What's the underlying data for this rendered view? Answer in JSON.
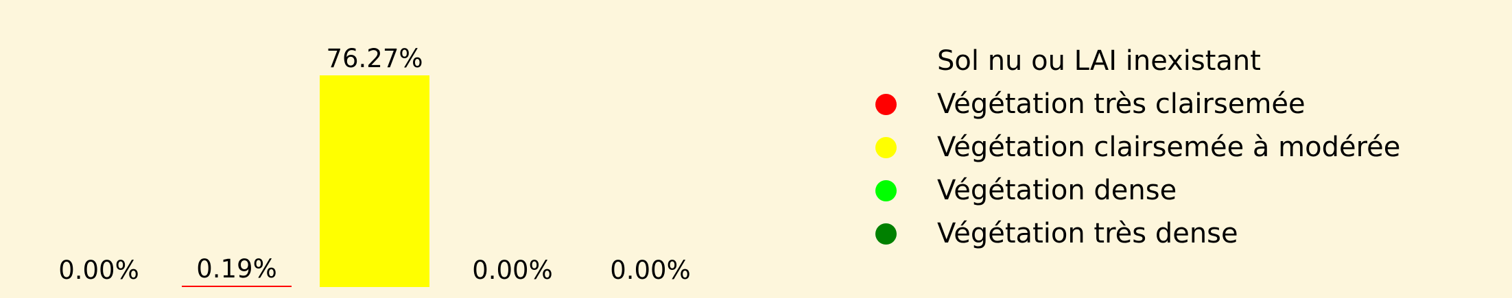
{
  "background_color": "#fdf6dc",
  "chart_data": {
    "type": "bar",
    "categories": [
      "Sol nu ou LAI inexistant",
      "Végétation très clairsemée",
      "Végétation clairsemée à modérée",
      "Végétation dense",
      "Végétation très dense"
    ],
    "values": [
      0.0,
      0.19,
      76.27,
      0.0,
      0.0
    ],
    "value_labels": [
      "0.00%",
      "0.19%",
      "76.27%",
      "0.00%",
      "0.00%"
    ],
    "colors": [
      "#fdf6dc",
      "#ff0000",
      "#ffff00",
      "#00ff00",
      "#008000"
    ],
    "ylim": [
      0,
      76.27
    ],
    "grid": false,
    "axes_visible": false,
    "legend_position": "right",
    "title": "",
    "xlabel": "",
    "ylabel": ""
  }
}
